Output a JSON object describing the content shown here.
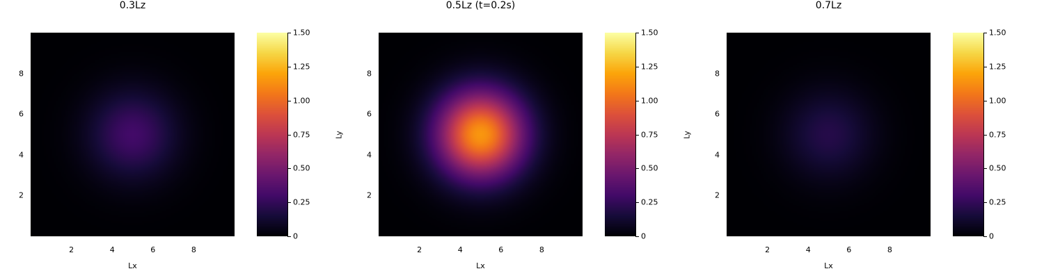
{
  "chart_data": [
    {
      "type": "heatmap",
      "title": "0.3Lz",
      "xlabel": "Lx",
      "ylabel": "",
      "xlim": [
        0,
        10
      ],
      "ylim": [
        0,
        10
      ],
      "xticks": [
        "2",
        "4",
        "6",
        "8"
      ],
      "yticks": [
        "2",
        "4",
        "6",
        "8"
      ],
      "colorbar": {
        "range": [
          0,
          1.5
        ],
        "ticks": [
          "0",
          "0.25",
          "0.50",
          "0.75",
          "1.00",
          "1.25",
          "1.50"
        ],
        "colormap": "inferno"
      },
      "field": {
        "shape": "gaussian",
        "center": [
          5,
          5
        ],
        "peak": 0.3,
        "sigma": 1.5
      }
    },
    {
      "type": "heatmap",
      "title": "0.5Lz (t=0.2s)",
      "xlabel": "Lx",
      "ylabel": "Ly",
      "xlim": [
        0,
        10
      ],
      "ylim": [
        0,
        10
      ],
      "xticks": [
        "2",
        "4",
        "6",
        "8"
      ],
      "yticks": [
        "2",
        "4",
        "6",
        "8"
      ],
      "colorbar": {
        "range": [
          0,
          1.5
        ],
        "ticks": [
          "0",
          "0.25",
          "0.50",
          "0.75",
          "1.00",
          "1.25",
          "1.50"
        ],
        "colormap": "inferno"
      },
      "field": {
        "shape": "gaussian",
        "center": [
          5,
          5
        ],
        "peak": 1.15,
        "sigma": 1.5
      }
    },
    {
      "type": "heatmap",
      "title": "0.7Lz",
      "xlabel": "Lx",
      "ylabel": "Ly",
      "xlim": [
        0,
        10
      ],
      "ylim": [
        0,
        10
      ],
      "xticks": [
        "2",
        "4",
        "6",
        "8"
      ],
      "yticks": [
        "2",
        "4",
        "6",
        "8"
      ],
      "colorbar": {
        "range": [
          0,
          1.5
        ],
        "ticks": [
          "0",
          "0.25",
          "0.50",
          "0.75",
          "1.00",
          "1.25",
          "1.50"
        ],
        "colormap": "inferno"
      },
      "field": {
        "shape": "gaussian",
        "center": [
          5,
          5
        ],
        "peak": 0.2,
        "sigma": 1.5
      }
    }
  ]
}
